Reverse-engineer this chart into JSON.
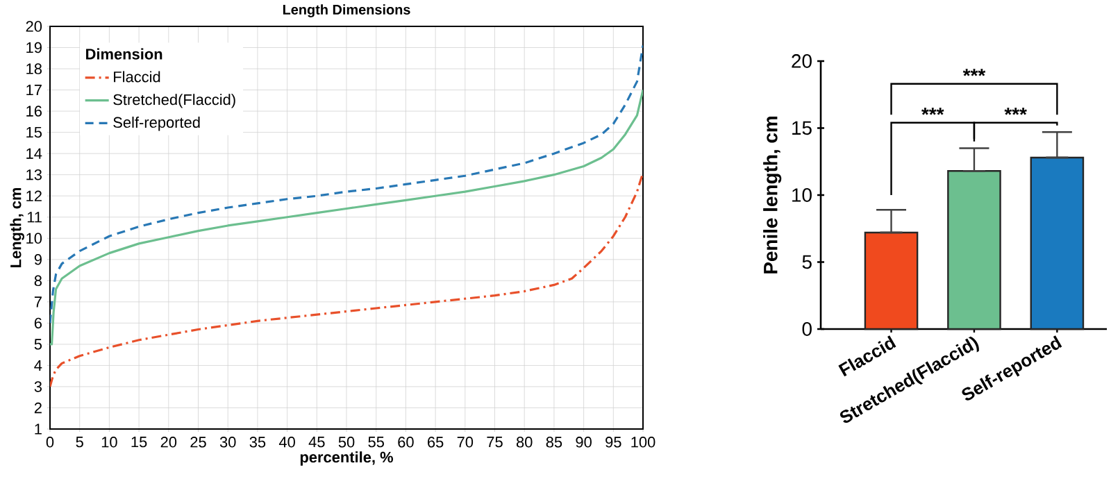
{
  "chart_data": [
    {
      "type": "line",
      "title": "Length Dimensions",
      "xlabel": "percentile, %",
      "ylabel": "Length, cm",
      "legend_title": "Dimension",
      "legend": "top left",
      "grid": true,
      "xlim": [
        0,
        100
      ],
      "xticks": [
        0,
        5,
        10,
        15,
        20,
        25,
        30,
        35,
        40,
        45,
        50,
        55,
        60,
        65,
        70,
        75,
        80,
        85,
        90,
        95,
        100
      ],
      "ylim": [
        1,
        20
      ],
      "yticks": [
        1,
        2,
        3,
        4,
        5,
        6,
        7,
        8,
        9,
        10,
        11,
        12,
        13,
        14,
        15,
        16,
        17,
        18,
        19,
        20
      ],
      "series": [
        {
          "name": "Flaccid",
          "color": "#e8502a",
          "line_style": "dashdot",
          "x": [
            0,
            0.5,
            1,
            2,
            5,
            10,
            15,
            20,
            25,
            30,
            35,
            40,
            45,
            50,
            55,
            60,
            65,
            70,
            75,
            80,
            85,
            88,
            90,
            93,
            95,
            97,
            99,
            100
          ],
          "values": [
            3.0,
            3.5,
            3.8,
            4.1,
            4.45,
            4.85,
            5.2,
            5.45,
            5.7,
            5.9,
            6.1,
            6.25,
            6.4,
            6.55,
            6.7,
            6.85,
            7.0,
            7.15,
            7.3,
            7.5,
            7.8,
            8.1,
            8.6,
            9.4,
            10.1,
            11.0,
            12.2,
            13.1
          ]
        },
        {
          "name": "Stretched(Flaccid)",
          "color": "#6cbf8f",
          "line_style": "solid",
          "x": [
            0,
            0.3,
            0.6,
            1,
            2,
            5,
            10,
            15,
            20,
            25,
            30,
            35,
            40,
            45,
            50,
            55,
            60,
            65,
            70,
            75,
            80,
            85,
            90,
            93,
            95,
            97,
            99,
            100
          ],
          "values": [
            5.0,
            5.0,
            6.5,
            7.6,
            8.1,
            8.7,
            9.3,
            9.75,
            10.05,
            10.35,
            10.6,
            10.8,
            11.0,
            11.2,
            11.4,
            11.6,
            11.8,
            12.0,
            12.2,
            12.45,
            12.7,
            13.0,
            13.4,
            13.8,
            14.2,
            14.9,
            15.8,
            17.0
          ]
        },
        {
          "name": "Self-reported",
          "color": "#2878b5",
          "line_style": "dashed",
          "x": [
            0,
            0.5,
            1,
            2,
            5,
            10,
            15,
            20,
            25,
            30,
            35,
            40,
            45,
            50,
            55,
            60,
            65,
            70,
            75,
            80,
            85,
            90,
            93,
            95,
            97,
            99,
            100
          ],
          "values": [
            6.0,
            7.5,
            8.3,
            8.8,
            9.4,
            10.1,
            10.55,
            10.9,
            11.2,
            11.45,
            11.65,
            11.85,
            12.0,
            12.2,
            12.35,
            12.55,
            12.75,
            12.95,
            13.25,
            13.55,
            14.0,
            14.5,
            14.9,
            15.4,
            16.3,
            17.4,
            19.1
          ]
        }
      ]
    },
    {
      "type": "bar",
      "ylabel": "Penile length, cm",
      "categories": [
        "Flaccid",
        "Stretched(Flaccid)",
        "Self-reported"
      ],
      "values": [
        7.2,
        11.8,
        12.8
      ],
      "colors": [
        "#f04a1e",
        "#6cbf8f",
        "#1a7abf"
      ],
      "errors": [
        [
          7.2,
          8.9
        ],
        [
          11.8,
          13.5
        ],
        [
          12.8,
          14.7
        ]
      ],
      "ylim": [
        0,
        20
      ],
      "yticks": [
        0,
        5,
        10,
        15,
        20
      ],
      "annotations": [
        "***",
        "***",
        "***"
      ]
    }
  ]
}
